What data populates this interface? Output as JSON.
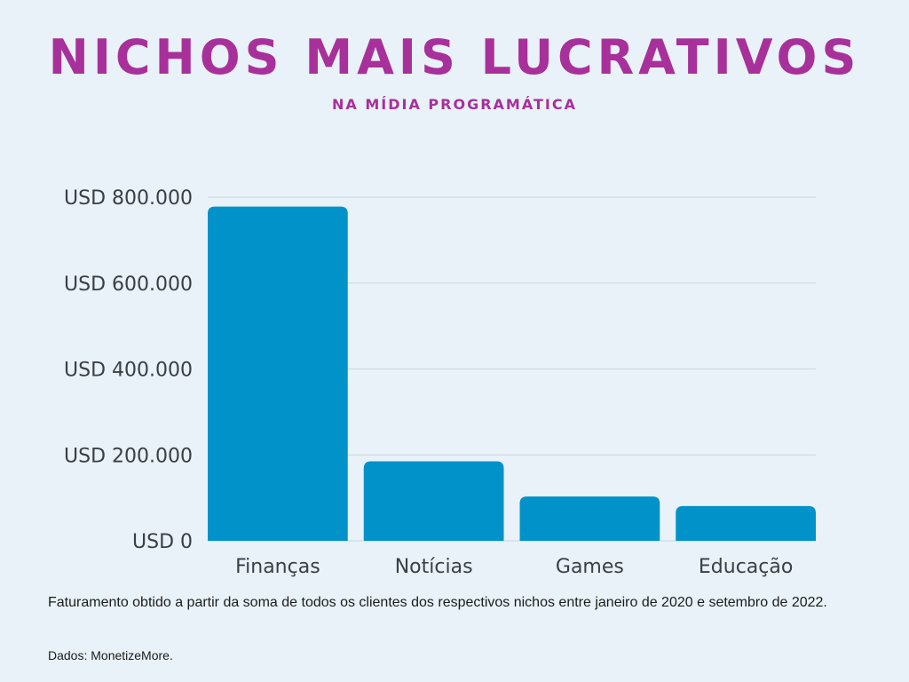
{
  "header": {
    "title": "NICHOS MAIS LUCRATIVOS",
    "subtitle": "NA MÍDIA PROGRAMÁTICA"
  },
  "chart_data": {
    "type": "bar",
    "categories": [
      "Finanças",
      "Notícias",
      "Games",
      "Educação"
    ],
    "values": [
      778000,
      185000,
      103000,
      81000
    ],
    "ylim": [
      0,
      800000
    ],
    "yticks": [
      0,
      200000,
      400000,
      600000,
      800000
    ],
    "ytick_labels": [
      "USD 0",
      "USD 200.000",
      "USD 400.000",
      "USD 600.000",
      "USD 800.000"
    ],
    "grid": true,
    "bar_color": "#0092c8",
    "grid_color": "#c9d6de"
  },
  "footer": {
    "note": "Faturamento obtido a partir da soma de todos os clientes dos respectivos nichos entre janeiro de 2020 e setembro de 2022.",
    "source": "Dados: MonetizeMore."
  }
}
